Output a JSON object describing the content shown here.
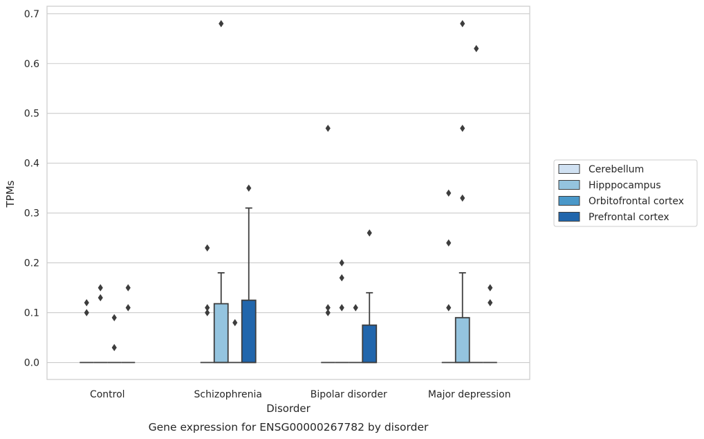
{
  "chart_data": {
    "type": "box",
    "caption": "Gene expression for ENSG00000267782 by disorder",
    "xlabel": "Disorder",
    "ylabel": "TPMs",
    "ylim": [
      -0.034,
      0.715
    ],
    "yticks": [
      0.0,
      0.1,
      0.2,
      0.3,
      0.4,
      0.5,
      0.6,
      0.7
    ],
    "ytick_labels": [
      "0.0",
      "0.1",
      "0.2",
      "0.3",
      "0.4",
      "0.5",
      "0.6",
      "0.7"
    ],
    "grid": "horizontal",
    "legend_position": "right",
    "categories": [
      "Control",
      "Schizophrenia",
      "Bipolar disorder",
      "Major depression"
    ],
    "series": [
      {
        "name": "Cerebellum",
        "color": "#d0e1f2",
        "boxes": [
          {
            "category": "Control",
            "q1": 0,
            "median": 0,
            "q3": 0,
            "whisker_low": 0,
            "whisker_high": 0,
            "outliers": [
              0.12,
              0.1
            ]
          },
          {
            "category": "Schizophrenia",
            "q1": 0,
            "median": 0,
            "q3": 0,
            "whisker_low": 0,
            "whisker_high": 0,
            "outliers": [
              0.23,
              0.11,
              0.1
            ]
          },
          {
            "category": "Bipolar disorder",
            "q1": 0,
            "median": 0,
            "q3": 0,
            "whisker_low": 0,
            "whisker_high": 0,
            "outliers": [
              0.47,
              0.11,
              0.1
            ]
          },
          {
            "category": "Major depression",
            "q1": 0,
            "median": 0,
            "q3": 0,
            "whisker_low": 0,
            "whisker_high": 0,
            "outliers": [
              0.34,
              0.24,
              0.11
            ]
          }
        ]
      },
      {
        "name": "Hipppocampus",
        "color": "#94c4df",
        "boxes": [
          {
            "category": "Control",
            "q1": 0,
            "median": 0,
            "q3": 0,
            "whisker_low": 0,
            "whisker_high": 0,
            "outliers": [
              0.15,
              0.13
            ]
          },
          {
            "category": "Schizophrenia",
            "q1": 0,
            "median": 0,
            "q3": 0.118,
            "whisker_low": 0,
            "whisker_high": 0.18,
            "outliers": [
              0.68
            ]
          },
          {
            "category": "Bipolar disorder",
            "q1": 0,
            "median": 0,
            "q3": 0,
            "whisker_low": 0,
            "whisker_high": 0,
            "outliers": [
              0.2,
              0.17,
              0.11
            ]
          },
          {
            "category": "Major depression",
            "q1": 0,
            "median": 0,
            "q3": 0.09,
            "whisker_low": 0,
            "whisker_high": 0.18,
            "outliers": [
              0.68,
              0.47,
              0.33
            ]
          }
        ]
      },
      {
        "name": "Orbitofrontal cortex",
        "color": "#4a98c9",
        "boxes": [
          {
            "category": "Control",
            "q1": 0,
            "median": 0,
            "q3": 0,
            "whisker_low": 0,
            "whisker_high": 0,
            "outliers": [
              0.09,
              0.03
            ]
          },
          {
            "category": "Schizophrenia",
            "q1": 0,
            "median": 0,
            "q3": 0,
            "whisker_low": 0,
            "whisker_high": 0,
            "outliers": [
              0.08
            ]
          },
          {
            "category": "Bipolar disorder",
            "q1": 0,
            "median": 0,
            "q3": 0,
            "whisker_low": 0,
            "whisker_high": 0,
            "outliers": [
              0.11
            ]
          },
          {
            "category": "Major depression",
            "q1": 0,
            "median": 0,
            "q3": 0,
            "whisker_low": 0,
            "whisker_high": 0,
            "outliers": [
              0.63
            ]
          }
        ]
      },
      {
        "name": "Prefrontal cortex",
        "color": "#2166ac",
        "boxes": [
          {
            "category": "Control",
            "q1": 0,
            "median": 0,
            "q3": 0,
            "whisker_low": 0,
            "whisker_high": 0,
            "outliers": [
              0.15,
              0.11
            ]
          },
          {
            "category": "Schizophrenia",
            "q1": 0,
            "median": 0,
            "q3": 0.125,
            "whisker_low": 0,
            "whisker_high": 0.31,
            "outliers": [
              0.35
            ]
          },
          {
            "category": "Bipolar disorder",
            "q1": 0,
            "median": 0,
            "q3": 0.075,
            "whisker_low": 0,
            "whisker_high": 0.14,
            "outliers": [
              0.26
            ]
          },
          {
            "category": "Major depression",
            "q1": 0,
            "median": 0,
            "q3": 0,
            "whisker_low": 0,
            "whisker_high": 0,
            "outliers": [
              0.15,
              0.12
            ]
          }
        ]
      }
    ]
  }
}
